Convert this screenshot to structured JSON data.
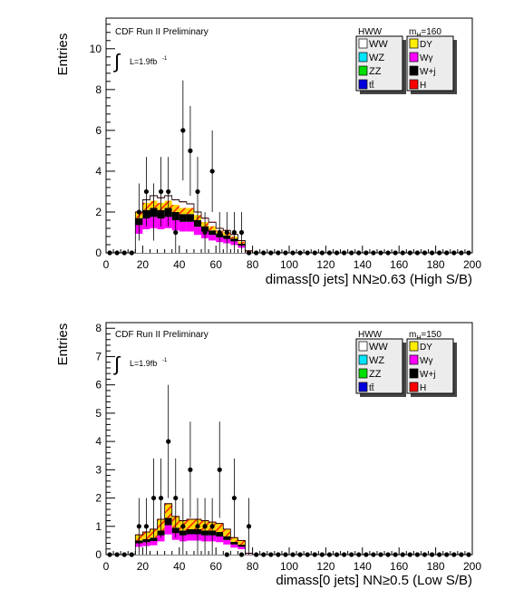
{
  "chart_data": [
    {
      "type": "bar",
      "panel": "top",
      "experiment_label": "CDF Run II Preliminary",
      "luminosity_label": "L=1.9fb",
      "luminosity_exp": "-1",
      "integral_symbol": "∫",
      "ylabel": "Entries",
      "xlabel": "dimass[0 jets] NN≥0.63 (High S/B)",
      "xlim": [
        0,
        200
      ],
      "ylim": [
        0,
        11.5
      ],
      "xticks": [
        0,
        20,
        40,
        60,
        80,
        100,
        120,
        140,
        160,
        180,
        200
      ],
      "yticks": [
        0,
        2,
        4,
        6,
        8,
        10
      ],
      "legend": {
        "header_left": "HWW",
        "header_right_main": "m",
        "header_right_sub": "H",
        "header_right_value": "=160",
        "left_entries": [
          {
            "label": "WW",
            "color": "#ffffff"
          },
          {
            "label": "WZ",
            "color": "#00e5ff"
          },
          {
            "label": "ZZ",
            "color": "#00dd00"
          },
          {
            "label": "tt̄",
            "color": "#0000dd"
          }
        ],
        "right_entries": [
          {
            "label": "DY",
            "color": "#ffee00"
          },
          {
            "label": "Wγ",
            "color": "#ff00ff"
          },
          {
            "label": "W+j",
            "color": "#000000"
          },
          {
            "label": "H",
            "color": "#ff0000"
          }
        ]
      },
      "bin_width": 4,
      "mc_bins_x": [
        16,
        20,
        24,
        28,
        32,
        36,
        40,
        44,
        48,
        52,
        56,
        60,
        64,
        68,
        72,
        76,
        80
      ],
      "mc_total": [
        2.0,
        2.6,
        2.8,
        2.7,
        2.8,
        2.6,
        2.5,
        2.4,
        2.0,
        1.7,
        1.5,
        1.2,
        1.1,
        0.9,
        0.6,
        0.1
      ],
      "mc_signal_band": [
        0.3,
        0.35,
        0.35,
        0.35,
        0.35,
        0.35,
        0.3,
        0.3,
        0.25,
        0.2,
        0.2,
        0.15,
        0.15,
        0.1,
        0.1,
        0.02
      ],
      "mc_background": [
        1.7,
        2.1,
        2.2,
        2.1,
        2.2,
        2.0,
        1.9,
        1.9,
        1.6,
        1.3,
        1.1,
        0.95,
        0.85,
        0.7,
        0.45,
        0.05
      ],
      "data_points": [
        {
          "x": 2,
          "y": 0,
          "err": 0
        },
        {
          "x": 6,
          "y": 0,
          "err": 0
        },
        {
          "x": 10,
          "y": 0,
          "err": 0
        },
        {
          "x": 14,
          "y": 0,
          "err": 0
        },
        {
          "x": 18,
          "y": 2,
          "err": 1.4
        },
        {
          "x": 22,
          "y": 3,
          "err": 1.7
        },
        {
          "x": 26,
          "y": 2,
          "err": 1.4
        },
        {
          "x": 30,
          "y": 3,
          "err": 1.7
        },
        {
          "x": 34,
          "y": 3,
          "err": 1.7
        },
        {
          "x": 38,
          "y": 1,
          "err": 1.0
        },
        {
          "x": 42,
          "y": 6,
          "err": 2.45
        },
        {
          "x": 46,
          "y": 5,
          "err": 2.2
        },
        {
          "x": 50,
          "y": 3,
          "err": 1.7
        },
        {
          "x": 54,
          "y": 1,
          "err": 1.0
        },
        {
          "x": 58,
          "y": 4,
          "err": 2.0
        },
        {
          "x": 62,
          "y": 1,
          "err": 1.0
        },
        {
          "x": 66,
          "y": 1,
          "err": 1.0
        },
        {
          "x": 70,
          "y": 1,
          "err": 1.0
        },
        {
          "x": 74,
          "y": 1,
          "err": 1.0
        },
        {
          "x": 78,
          "y": 0,
          "err": 0
        },
        {
          "x": 82,
          "y": 0,
          "err": 0
        },
        {
          "x": 86,
          "y": 0,
          "err": 0
        },
        {
          "x": 90,
          "y": 0,
          "err": 0
        },
        {
          "x": 94,
          "y": 0,
          "err": 0
        },
        {
          "x": 98,
          "y": 0,
          "err": 0
        },
        {
          "x": 102,
          "y": 0,
          "err": 0
        },
        {
          "x": 106,
          "y": 0,
          "err": 0
        },
        {
          "x": 110,
          "y": 0,
          "err": 0
        },
        {
          "x": 114,
          "y": 0,
          "err": 0
        },
        {
          "x": 118,
          "y": 0,
          "err": 0
        },
        {
          "x": 122,
          "y": 0,
          "err": 0
        },
        {
          "x": 126,
          "y": 0,
          "err": 0
        },
        {
          "x": 130,
          "y": 0,
          "err": 0
        },
        {
          "x": 134,
          "y": 0,
          "err": 0
        },
        {
          "x": 138,
          "y": 0,
          "err": 0
        },
        {
          "x": 142,
          "y": 0,
          "err": 0
        },
        {
          "x": 146,
          "y": 0,
          "err": 0
        },
        {
          "x": 150,
          "y": 0,
          "err": 0
        },
        {
          "x": 154,
          "y": 0,
          "err": 0
        },
        {
          "x": 158,
          "y": 0,
          "err": 0
        },
        {
          "x": 162,
          "y": 0,
          "err": 0
        },
        {
          "x": 166,
          "y": 0,
          "err": 0
        },
        {
          "x": 170,
          "y": 0,
          "err": 0
        },
        {
          "x": 174,
          "y": 0,
          "err": 0
        },
        {
          "x": 178,
          "y": 0,
          "err": 0
        },
        {
          "x": 182,
          "y": 0,
          "err": 0
        },
        {
          "x": 186,
          "y": 0,
          "err": 0
        },
        {
          "x": 190,
          "y": 0,
          "err": 0
        },
        {
          "x": 194,
          "y": 0,
          "err": 0
        },
        {
          "x": 198,
          "y": 0,
          "err": 0
        }
      ]
    },
    {
      "type": "bar",
      "panel": "bottom",
      "experiment_label": "CDF Run II Preliminary",
      "luminosity_label": "L=1.9fb",
      "luminosity_exp": "-1",
      "integral_symbol": "∫",
      "ylabel": "Entries",
      "xlabel": "dimass[0 jets] NN≥0.5 (Low S/B)",
      "xlim": [
        0,
        200
      ],
      "ylim": [
        0,
        8.2
      ],
      "xticks": [
        0,
        20,
        40,
        60,
        80,
        100,
        120,
        140,
        160,
        180,
        200
      ],
      "yticks": [
        0,
        1,
        2,
        3,
        4,
        5,
        6,
        7,
        8
      ],
      "legend": {
        "header_left": "HWW",
        "header_right_main": "m",
        "header_right_sub": "H",
        "header_right_value": "=150",
        "left_entries": [
          {
            "label": "WW",
            "color": "#ffffff"
          },
          {
            "label": "WZ",
            "color": "#00e5ff"
          },
          {
            "label": "ZZ",
            "color": "#00dd00"
          },
          {
            "label": "tt̄",
            "color": "#0000dd"
          }
        ],
        "right_entries": [
          {
            "label": "DY",
            "color": "#ffee00"
          },
          {
            "label": "Wγ",
            "color": "#ff00ff"
          },
          {
            "label": "W+j",
            "color": "#000000"
          },
          {
            "label": "H",
            "color": "#ff0000"
          }
        ]
      },
      "bin_width": 4,
      "mc_bins_x": [
        16,
        20,
        24,
        28,
        32,
        36,
        40,
        44,
        48,
        52,
        56,
        60,
        64,
        68,
        72,
        76,
        80
      ],
      "mc_total": [
        0.7,
        0.8,
        0.9,
        1.25,
        1.8,
        1.35,
        1.2,
        1.25,
        1.25,
        1.2,
        1.15,
        1.1,
        0.9,
        0.6,
        0.5,
        0.05
      ],
      "mc_signal_band": [
        0.2,
        0.25,
        0.3,
        0.4,
        0.5,
        0.4,
        0.35,
        0.35,
        0.35,
        0.35,
        0.3,
        0.3,
        0.25,
        0.15,
        0.15,
        0.01
      ],
      "mc_background": [
        0.5,
        0.55,
        0.6,
        0.85,
        1.3,
        0.95,
        0.85,
        0.9,
        0.9,
        0.85,
        0.85,
        0.8,
        0.65,
        0.45,
        0.35,
        0.04
      ],
      "data_points": [
        {
          "x": 2,
          "y": 0,
          "err": 0
        },
        {
          "x": 6,
          "y": 0,
          "err": 0
        },
        {
          "x": 10,
          "y": 0,
          "err": 0
        },
        {
          "x": 14,
          "y": 0,
          "err": 0
        },
        {
          "x": 18,
          "y": 1,
          "err": 1.0
        },
        {
          "x": 22,
          "y": 1,
          "err": 1.0
        },
        {
          "x": 26,
          "y": 2,
          "err": 1.4
        },
        {
          "x": 30,
          "y": 2,
          "err": 1.4
        },
        {
          "x": 34,
          "y": 4,
          "err": 2.0
        },
        {
          "x": 38,
          "y": 2,
          "err": 1.4
        },
        {
          "x": 42,
          "y": 1,
          "err": 1.0
        },
        {
          "x": 46,
          "y": 3,
          "err": 1.7
        },
        {
          "x": 50,
          "y": 1,
          "err": 1.0
        },
        {
          "x": 54,
          "y": 1,
          "err": 1.0
        },
        {
          "x": 58,
          "y": 1,
          "err": 1.0
        },
        {
          "x": 62,
          "y": 3,
          "err": 1.7
        },
        {
          "x": 66,
          "y": 0,
          "err": 0
        },
        {
          "x": 70,
          "y": 2,
          "err": 1.4
        },
        {
          "x": 74,
          "y": 0,
          "err": 0
        },
        {
          "x": 78,
          "y": 1,
          "err": 1.0
        },
        {
          "x": 82,
          "y": 0,
          "err": 0
        },
        {
          "x": 86,
          "y": 0,
          "err": 0
        },
        {
          "x": 90,
          "y": 0,
          "err": 0
        },
        {
          "x": 94,
          "y": 0,
          "err": 0
        },
        {
          "x": 98,
          "y": 0,
          "err": 0
        },
        {
          "x": 102,
          "y": 0,
          "err": 0
        },
        {
          "x": 106,
          "y": 0,
          "err": 0
        },
        {
          "x": 110,
          "y": 0,
          "err": 0
        },
        {
          "x": 114,
          "y": 0,
          "err": 0
        },
        {
          "x": 118,
          "y": 0,
          "err": 0
        },
        {
          "x": 122,
          "y": 0,
          "err": 0
        },
        {
          "x": 126,
          "y": 0,
          "err": 0
        },
        {
          "x": 130,
          "y": 0,
          "err": 0
        },
        {
          "x": 134,
          "y": 0,
          "err": 0
        },
        {
          "x": 138,
          "y": 0,
          "err": 0
        },
        {
          "x": 142,
          "y": 0,
          "err": 0
        },
        {
          "x": 146,
          "y": 0,
          "err": 0
        },
        {
          "x": 150,
          "y": 0,
          "err": 0
        },
        {
          "x": 154,
          "y": 0,
          "err": 0
        },
        {
          "x": 158,
          "y": 0,
          "err": 0
        },
        {
          "x": 162,
          "y": 0,
          "err": 0
        },
        {
          "x": 166,
          "y": 0,
          "err": 0
        },
        {
          "x": 170,
          "y": 0,
          "err": 0
        },
        {
          "x": 174,
          "y": 0,
          "err": 0
        },
        {
          "x": 178,
          "y": 0,
          "err": 0
        },
        {
          "x": 182,
          "y": 0,
          "err": 0
        },
        {
          "x": 186,
          "y": 0,
          "err": 0
        },
        {
          "x": 190,
          "y": 0,
          "err": 0
        },
        {
          "x": 194,
          "y": 0,
          "err": 0
        },
        {
          "x": 198,
          "y": 0,
          "err": 0
        }
      ]
    }
  ]
}
